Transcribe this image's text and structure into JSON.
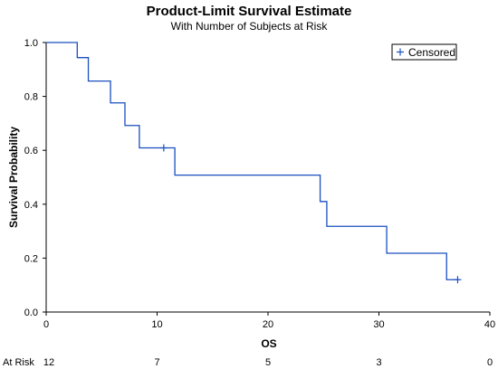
{
  "chart_data": {
    "type": "line",
    "title": "Product-Limit Survival Estimate",
    "subtitle": "With Number of Subjects at Risk",
    "xlabel": "OS",
    "ylabel": "Survival Probability",
    "xlim": [
      0,
      40
    ],
    "ylim": [
      0,
      1.0
    ],
    "x_ticks": [
      "0",
      "10",
      "20",
      "30",
      "40"
    ],
    "y_ticks": [
      "0.0",
      "0.2",
      "0.4",
      "0.6",
      "0.8",
      "1.0"
    ],
    "grid": false,
    "legend": {
      "position": "top-right",
      "label": "Censored"
    },
    "series": [
      {
        "color": "#1a4fc0",
        "steps": [
          {
            "x": 0,
            "y": 1.0
          },
          {
            "x": 2.8,
            "y": 0.944
          },
          {
            "x": 3.8,
            "y": 0.857
          },
          {
            "x": 5.8,
            "y": 0.776
          },
          {
            "x": 7.1,
            "y": 0.692
          },
          {
            "x": 8.4,
            "y": 0.609
          },
          {
            "x": 11.6,
            "y": 0.508
          },
          {
            "x": 24.7,
            "y": 0.41
          },
          {
            "x": 25.3,
            "y": 0.318
          },
          {
            "x": 30.7,
            "y": 0.218
          },
          {
            "x": 36.1,
            "y": 0.12
          }
        ],
        "end_x": 37.1,
        "censored": [
          {
            "x": 10.6,
            "y": 0.609
          },
          {
            "x": 37.1,
            "y": 0.12
          }
        ]
      }
    ],
    "at_risk": {
      "label": "At Risk",
      "values": [
        {
          "x": 0,
          "n": "12"
        },
        {
          "x": 10,
          "n": "7"
        },
        {
          "x": 20,
          "n": "5"
        },
        {
          "x": 30,
          "n": "3"
        },
        {
          "x": 40,
          "n": "0"
        }
      ]
    }
  }
}
